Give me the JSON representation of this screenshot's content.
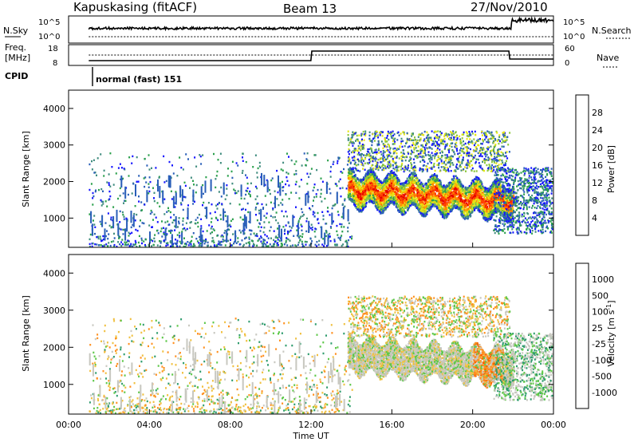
{
  "header": {
    "station": "Kapuskasing (fitACF)",
    "beam": "Beam 13",
    "date": "27/Nov/2010"
  },
  "strips": {
    "nsky": {
      "label": "N.Sky",
      "ticks": [
        "10^5",
        "10^0"
      ]
    },
    "nsearch": {
      "label": "N.Search",
      "ticks": [
        "10^5",
        "10^0"
      ]
    },
    "freq": {
      "label_line1": "Freq.",
      "label_line2": "[MHz]",
      "ticks": [
        "18",
        "8"
      ]
    },
    "nave": {
      "label": "Nave",
      "ticks": [
        "60",
        "0"
      ]
    },
    "cpid": {
      "label": "CPID",
      "value": "normal (fast) 151"
    }
  },
  "chart_data": [
    {
      "type": "heatmap",
      "panel": "power",
      "ylabel": "Slant Range [km]",
      "ylim": [
        200,
        4500
      ],
      "yticks": [
        "4000",
        "3000",
        "2000",
        "1000"
      ],
      "xlim_hours": [
        0,
        24
      ],
      "colorbar": {
        "label": "Power [dB]",
        "ticks": [
          "28",
          "24",
          "20",
          "16",
          "12",
          "8",
          "4"
        ],
        "colors": [
          "#1414ff",
          "#2a5fb8",
          "#3f8c7e",
          "#2ba04c",
          "#8cc83c",
          "#e6e614",
          "#ffb000",
          "#ff7800",
          "#ff3c00",
          "#e60000"
        ]
      }
    },
    {
      "type": "heatmap",
      "panel": "velocity",
      "ylabel": "Slant Range [km]",
      "xlabel": "Time UT",
      "ylim": [
        200,
        4500
      ],
      "yticks": [
        "4000",
        "3000",
        "2000",
        "1000"
      ],
      "xticks": [
        "00:00",
        "04:00",
        "08:00",
        "12:00",
        "16:00",
        "20:00",
        "00:00"
      ],
      "colorbar": {
        "label": "Velocity [m s",
        "label_sup": "-1",
        "label_end": "]",
        "ticks": [
          "1000",
          "500",
          "100",
          "25",
          "-25",
          "-100",
          "-500",
          "-1000"
        ],
        "colors": [
          "#2222cc",
          "#2e6ec8",
          "#2f9c6e",
          "#5fc84a",
          "#c8c8c0",
          "#f0c040",
          "#ff9020",
          "#ff6000",
          "#e60000"
        ]
      }
    }
  ]
}
